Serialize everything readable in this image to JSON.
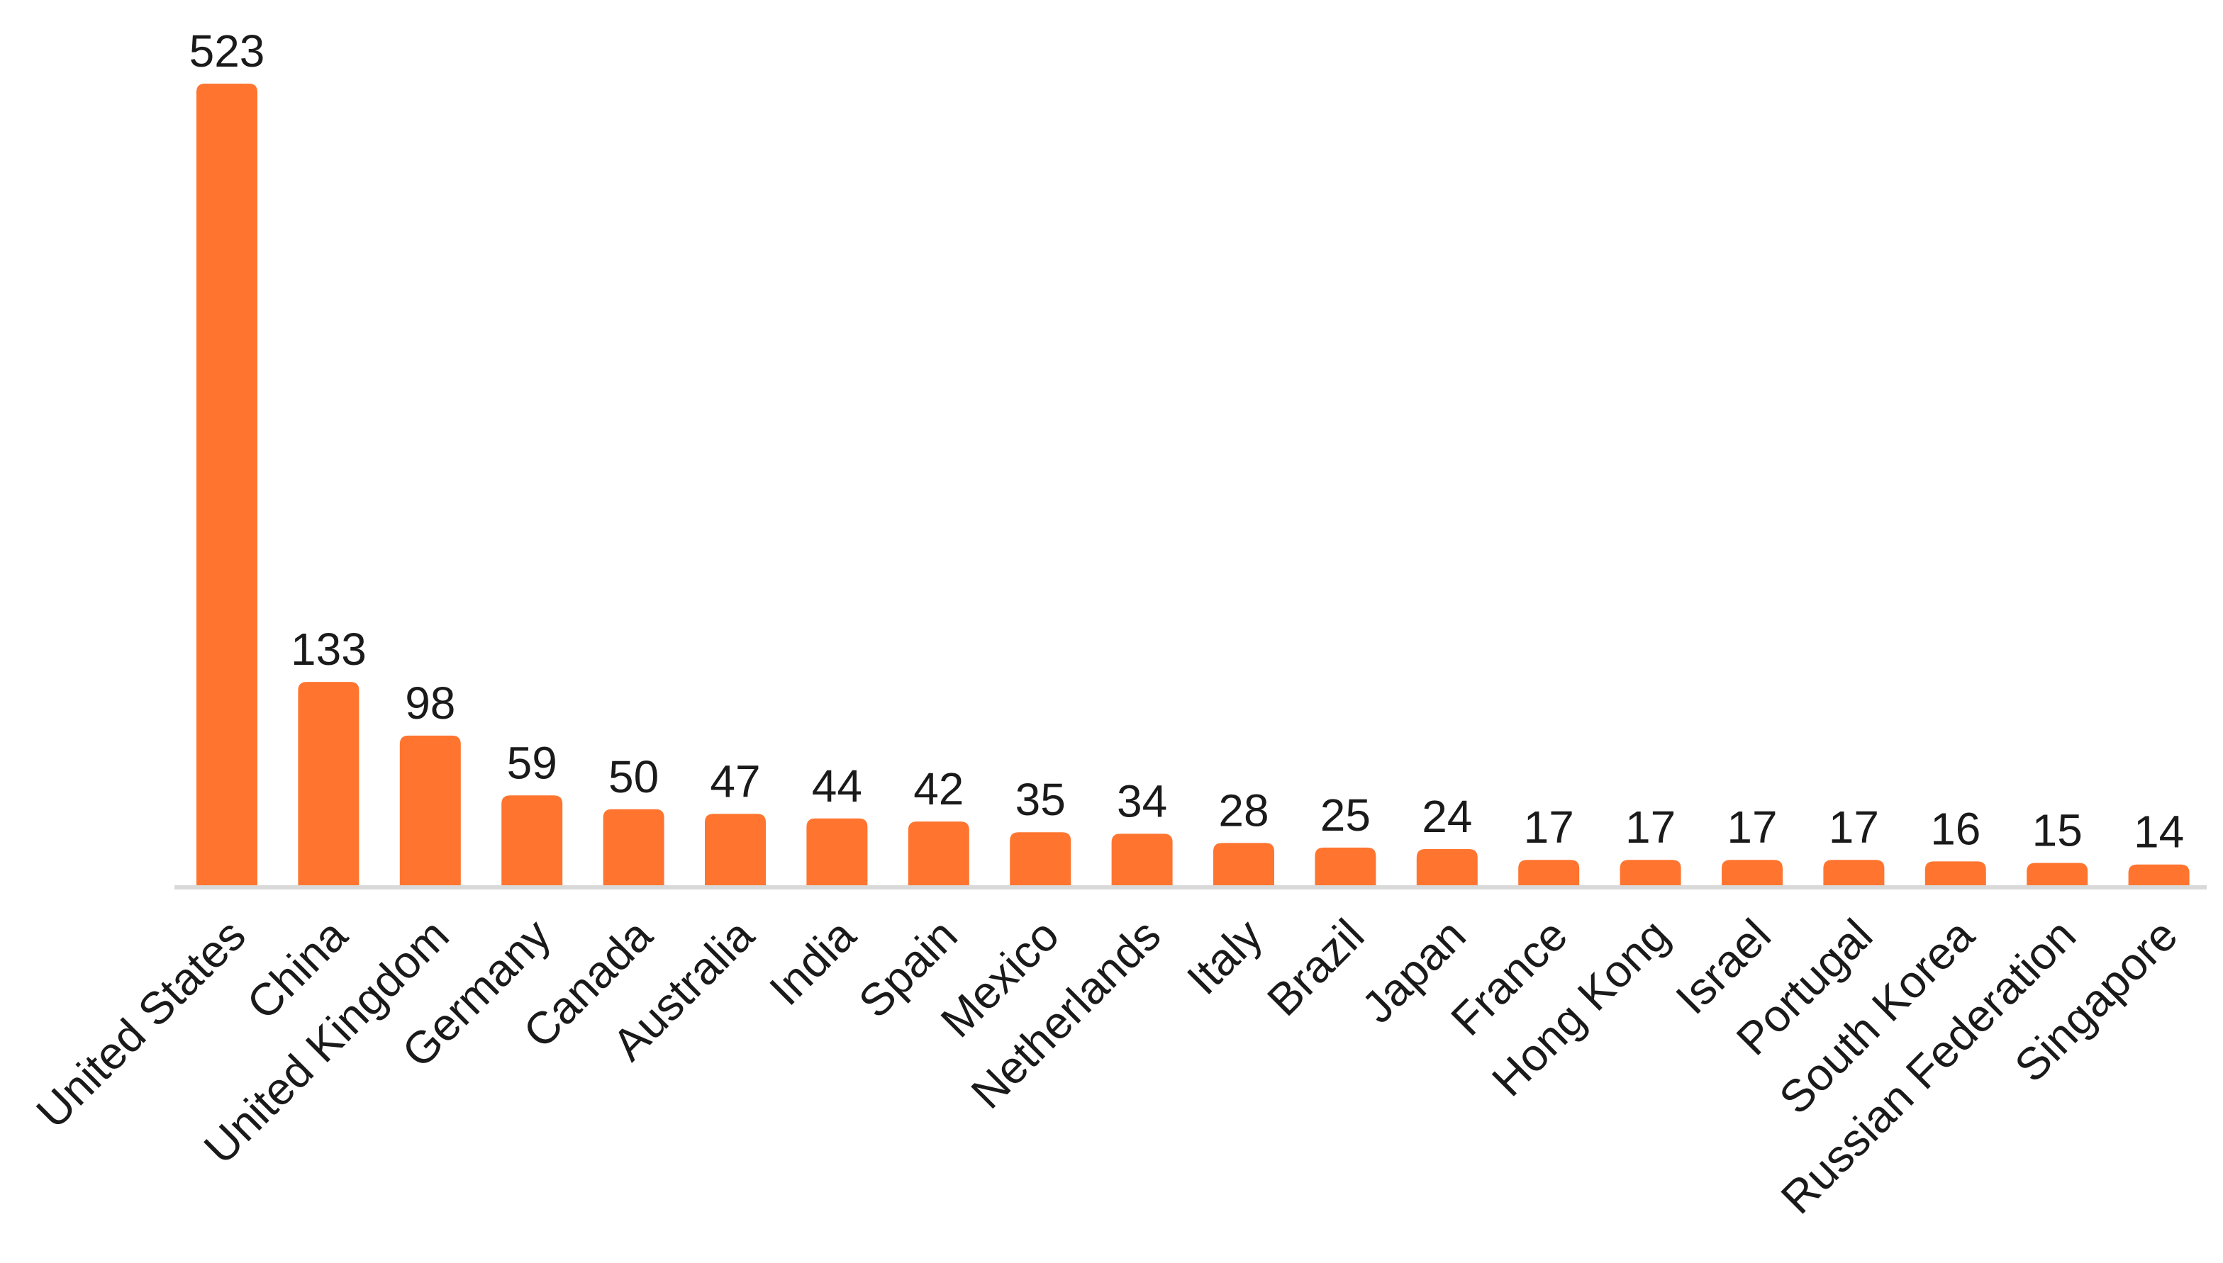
{
  "chart_data": {
    "type": "bar",
    "title": "",
    "xlabel": "",
    "ylabel": "",
    "categories": [
      "United States",
      "China",
      "United Kingdom",
      "Germany",
      "Canada",
      "Australia",
      "India",
      "Spain",
      "Mexico",
      "Netherlands",
      "Italy",
      "Brazil",
      "Japan",
      "France",
      "Hong Kong",
      "Israel",
      "Portugal",
      "South Korea",
      "Russian Federation",
      "Singapore"
    ],
    "values": [
      523,
      133,
      98,
      59,
      50,
      47,
      44,
      42,
      35,
      34,
      28,
      25,
      24,
      17,
      17,
      17,
      17,
      16,
      15,
      14
    ],
    "ylim": [
      0,
      523
    ],
    "grid": false,
    "legend": "none",
    "data_labels": true,
    "colors": {
      "bar": "#FF7530",
      "axis": "#D9D9D9",
      "text": "#1A1A1A"
    }
  }
}
